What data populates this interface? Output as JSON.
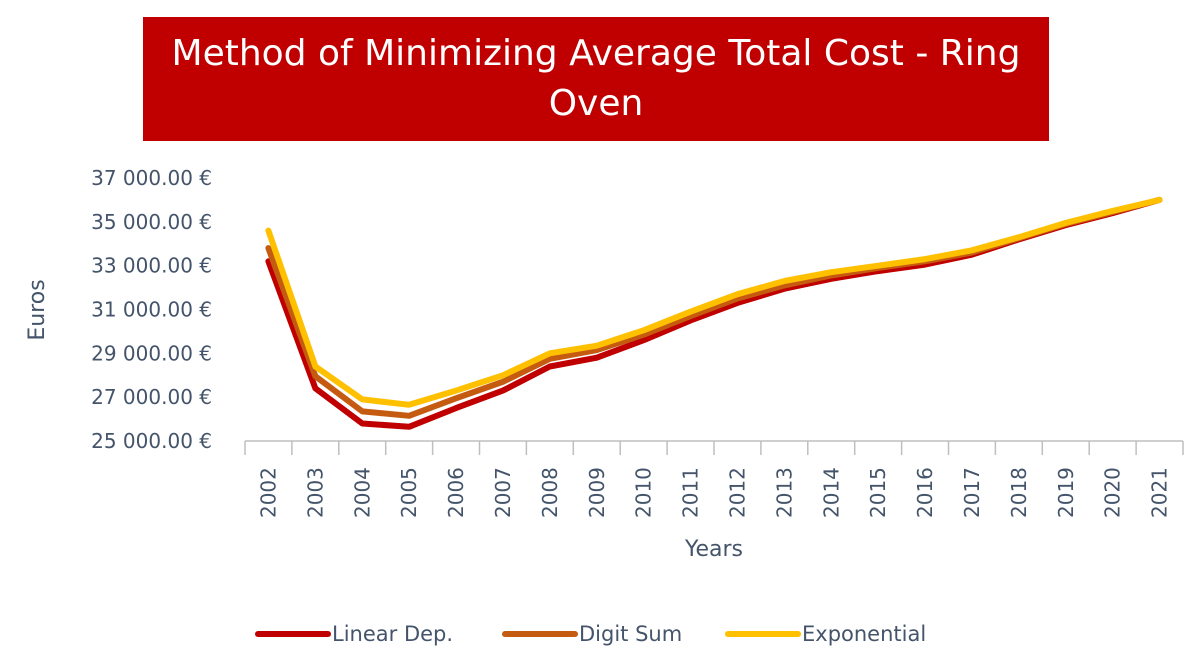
{
  "chart_data": {
    "type": "line",
    "title": "Method of Minimizing Average Total Cost - Ring Oven",
    "xlabel": "Years",
    "ylabel": "Euros",
    "ylim": [
      25000,
      37000
    ],
    "y_ticks": [
      "37 000.00 €",
      "35 000.00 €",
      "33 000.00 €",
      "31 000.00 €",
      "29 000.00 €",
      "27 000.00 €",
      "25 000.00 €"
    ],
    "y_tick_values": [
      37000,
      35000,
      33000,
      31000,
      29000,
      27000,
      25000
    ],
    "categories": [
      "2002",
      "2003",
      "2004",
      "2005",
      "2006",
      "2007",
      "2008",
      "2009",
      "2010",
      "2011",
      "2012",
      "2013",
      "2014",
      "2015",
      "2016",
      "2017",
      "2018",
      "2019",
      "2020",
      "2021"
    ],
    "grid": false,
    "legend_position": "bottom",
    "series": [
      {
        "name": "Linear Dep.",
        "color": "#c00000",
        "values": [
          33200,
          27400,
          25800,
          25650,
          26500,
          27300,
          28400,
          28800,
          29600,
          30500,
          31300,
          31950,
          32400,
          32750,
          33050,
          33500,
          34200,
          34850,
          35400,
          36000
        ]
      },
      {
        "name": "Digit Sum",
        "color": "#c55a11",
        "values": [
          33800,
          27950,
          26350,
          26150,
          26950,
          27700,
          28750,
          29150,
          29850,
          30700,
          31500,
          32100,
          32550,
          32900,
          33200,
          33600,
          34250,
          34900,
          35450,
          36000
        ]
      },
      {
        "name": "Exponential",
        "color": "#ffc000",
        "values": [
          34600,
          28400,
          26900,
          26650,
          27300,
          28000,
          29000,
          29350,
          30050,
          30900,
          31700,
          32300,
          32700,
          33000,
          33300,
          33700,
          34300,
          34950,
          35500,
          36000
        ]
      }
    ]
  }
}
